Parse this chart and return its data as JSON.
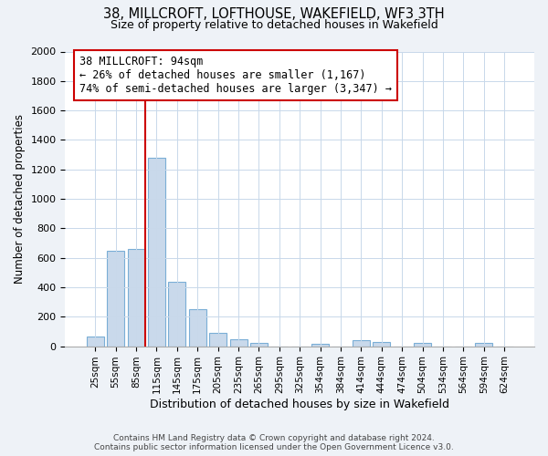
{
  "title": "38, MILLCROFT, LOFTHOUSE, WAKEFIELD, WF3 3TH",
  "subtitle": "Size of property relative to detached houses in Wakefield",
  "xlabel": "Distribution of detached houses by size in Wakefield",
  "ylabel": "Number of detached properties",
  "bar_labels": [
    "25sqm",
    "55sqm",
    "85sqm",
    "115sqm",
    "145sqm",
    "175sqm",
    "205sqm",
    "235sqm",
    "265sqm",
    "295sqm",
    "325sqm",
    "354sqm",
    "384sqm",
    "414sqm",
    "444sqm",
    "474sqm",
    "504sqm",
    "534sqm",
    "564sqm",
    "594sqm",
    "624sqm"
  ],
  "bar_values": [
    65,
    650,
    660,
    1280,
    440,
    250,
    90,
    50,
    25,
    0,
    0,
    15,
    0,
    40,
    30,
    0,
    25,
    0,
    0,
    25,
    0
  ],
  "bar_color": "#c9d9eb",
  "bar_edgecolor": "#7aaed6",
  "vline_color": "#cc0000",
  "annotation_text": "38 MILLCROFT: 94sqm\n← 26% of detached houses are smaller (1,167)\n74% of semi-detached houses are larger (3,347) →",
  "annotation_box_edgecolor": "#cc0000",
  "ylim": [
    0,
    2000
  ],
  "yticks": [
    0,
    200,
    400,
    600,
    800,
    1000,
    1200,
    1400,
    1600,
    1800,
    2000
  ],
  "footer_line1": "Contains HM Land Registry data © Crown copyright and database right 2024.",
  "footer_line2": "Contains public sector information licensed under the Open Government Licence v3.0.",
  "bg_color": "#eef2f7",
  "plot_bg_color": "#ffffff",
  "grid_color": "#c8d8ea"
}
